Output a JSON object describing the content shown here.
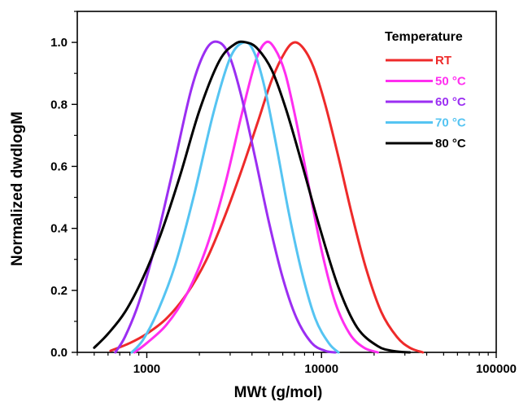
{
  "chart_data": {
    "type": "line",
    "xlabel": "MWt (g/mol)",
    "ylabel": "Normalized dwdlogM",
    "x_scale": "log",
    "xlim": [
      400,
      100000
    ],
    "ylim": [
      0,
      1.1
    ],
    "x_ticks": [
      {
        "value": 1000,
        "label": "1000"
      },
      {
        "value": 10000,
        "label": "10000"
      },
      {
        "value": 100000,
        "label": "100000"
      }
    ],
    "y_ticks": [
      {
        "value": 0.0,
        "label": "0.0"
      },
      {
        "value": 0.2,
        "label": "0.2"
      },
      {
        "value": 0.4,
        "label": "0.4"
      },
      {
        "value": 0.6,
        "label": "0.6"
      },
      {
        "value": 0.8,
        "label": "0.8"
      },
      {
        "value": 1.0,
        "label": "1.0"
      }
    ],
    "grid": false,
    "legend": {
      "title": "Temperature",
      "placement": "top-right"
    },
    "series": [
      {
        "name": "RT",
        "color": "#ee2a2a",
        "x": [
          620,
          800,
          1000,
          1300,
          1700,
          2200,
          2800,
          3500,
          4300,
          5200,
          6200,
          7000,
          7900,
          9000,
          10500,
          12500,
          15000,
          18000,
          22000,
          27000,
          32000,
          38000
        ],
        "y": [
          0.005,
          0.03,
          0.06,
          0.11,
          0.19,
          0.3,
          0.44,
          0.59,
          0.74,
          0.88,
          0.97,
          1.0,
          0.98,
          0.92,
          0.8,
          0.63,
          0.44,
          0.27,
          0.13,
          0.05,
          0.015,
          0.0
        ]
      },
      {
        "name": "50 °C",
        "color": "#ff2ef0",
        "x": [
          850,
          1000,
          1300,
          1700,
          2200,
          2800,
          3500,
          4200,
          4800,
          5400,
          6200,
          7200,
          8500,
          10000,
          12000,
          14500,
          17500,
          21000
        ],
        "y": [
          0.0,
          0.03,
          0.09,
          0.19,
          0.34,
          0.54,
          0.77,
          0.94,
          1.0,
          0.98,
          0.9,
          0.74,
          0.53,
          0.33,
          0.16,
          0.06,
          0.015,
          0.0
        ]
      },
      {
        "name": "60 °C",
        "color": "#9b2ef2",
        "x": [
          660,
          750,
          900,
          1100,
          1400,
          1800,
          2200,
          2600,
          3000,
          3500,
          4200,
          5000,
          6000,
          7200,
          8800,
          10500,
          12000
        ],
        "y": [
          0.0,
          0.05,
          0.16,
          0.33,
          0.58,
          0.85,
          0.98,
          1.0,
          0.95,
          0.82,
          0.62,
          0.42,
          0.24,
          0.11,
          0.03,
          0.005,
          0.0
        ]
      },
      {
        "name": "70 °C",
        "color": "#55c4f2",
        "x": [
          820,
          950,
          1150,
          1450,
          1850,
          2400,
          3000,
          3600,
          4100,
          4700,
          5500,
          6500,
          7700,
          9200,
          11000,
          12500
        ],
        "y": [
          0.0,
          0.04,
          0.13,
          0.28,
          0.5,
          0.77,
          0.95,
          1.0,
          0.97,
          0.86,
          0.67,
          0.45,
          0.26,
          0.11,
          0.03,
          0.0
        ]
      },
      {
        "name": "80 °C",
        "color": "#000000",
        "x": [
          500,
          600,
          750,
          950,
          1200,
          1550,
          2000,
          2600,
          3200,
          3700,
          4300,
          5200,
          6300,
          7800,
          9800,
          12500,
          16000,
          21000,
          26000,
          32000
        ],
        "y": [
          0.015,
          0.06,
          0.13,
          0.24,
          0.38,
          0.57,
          0.78,
          0.94,
          0.995,
          1.0,
          0.98,
          0.91,
          0.78,
          0.6,
          0.4,
          0.21,
          0.08,
          0.02,
          0.004,
          0.0
        ]
      }
    ]
  }
}
